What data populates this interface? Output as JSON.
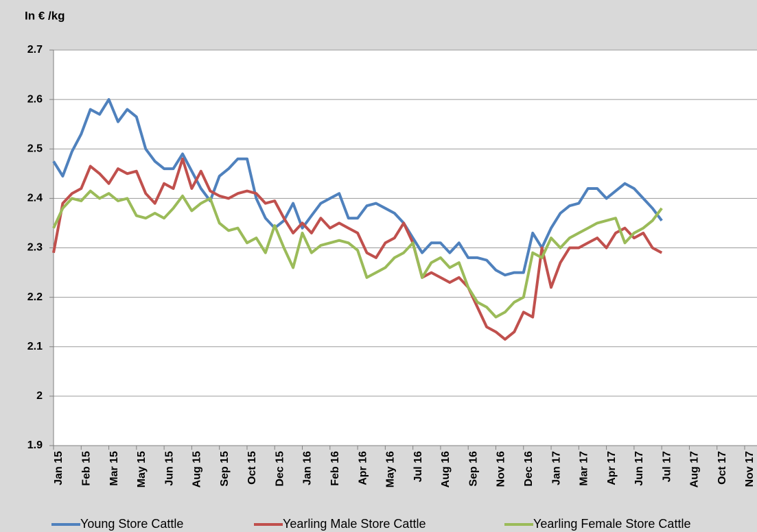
{
  "chart_data": {
    "type": "line",
    "y_axis_label": "In € /kg",
    "categories": [
      "Jan 15",
      null,
      null,
      "Feb 15",
      null,
      null,
      "Mar 15",
      null,
      null,
      "May 15",
      null,
      null,
      "Jun 15",
      null,
      null,
      "Aug 15",
      null,
      null,
      "Sep 15",
      null,
      null,
      "Oct 15",
      null,
      null,
      "Dec 15",
      null,
      null,
      "Jan 16",
      null,
      null,
      "Feb 16",
      null,
      null,
      "Apr 16",
      null,
      null,
      "May 16",
      null,
      null,
      "Jul 16",
      null,
      null,
      "Aug 16",
      null,
      null,
      "Sep 16",
      null,
      null,
      "Nov 16",
      null,
      null,
      "Dec 16",
      null,
      null,
      "Jan 17",
      null,
      null,
      "Mar 17",
      null,
      null,
      "Apr 17",
      null,
      null,
      "Jun 17",
      null,
      null,
      "Jul 17",
      null,
      null,
      "Aug 17",
      null,
      null,
      "Oct 17",
      null,
      null,
      "Nov 17"
    ],
    "series": [
      {
        "name": "Young Store Cattle",
        "color": "#4f81bd",
        "values": [
          2.475,
          2.445,
          2.495,
          2.53,
          2.58,
          2.57,
          2.6,
          2.555,
          2.58,
          2.565,
          2.5,
          2.475,
          2.46,
          2.46,
          2.49,
          2.455,
          2.42,
          2.395,
          2.445,
          2.46,
          2.48,
          2.48,
          2.4,
          2.36,
          2.34,
          2.355,
          2.39,
          2.34,
          2.365,
          2.39,
          2.4,
          2.41,
          2.36,
          2.36,
          2.385,
          2.39,
          2.38,
          2.37,
          2.35,
          2.32,
          2.29,
          2.31,
          2.31,
          2.29,
          2.31,
          2.28,
          2.28,
          2.275,
          2.255,
          2.245,
          2.25,
          2.25,
          2.33,
          2.3,
          2.34,
          2.37,
          2.385,
          2.39,
          2.42,
          2.42,
          2.4,
          2.415,
          2.43,
          2.42,
          2.4,
          2.38,
          2.355,
          null,
          null,
          null,
          null,
          null,
          null,
          null,
          null,
          null
        ]
      },
      {
        "name": "Yearling Male Store Cattle",
        "color": "#c0504d",
        "values": [
          2.29,
          2.39,
          2.41,
          2.42,
          2.465,
          2.45,
          2.43,
          2.46,
          2.45,
          2.455,
          2.41,
          2.39,
          2.43,
          2.42,
          2.48,
          2.42,
          2.455,
          2.415,
          2.405,
          2.4,
          2.41,
          2.415,
          2.41,
          2.39,
          2.395,
          2.36,
          2.33,
          2.35,
          2.33,
          2.36,
          2.34,
          2.35,
          2.34,
          2.33,
          2.29,
          2.28,
          2.31,
          2.32,
          2.35,
          2.31,
          2.24,
          2.25,
          2.24,
          2.23,
          2.24,
          2.22,
          2.18,
          2.14,
          2.13,
          2.115,
          2.13,
          2.17,
          2.16,
          2.3,
          2.22,
          2.27,
          2.3,
          2.3,
          2.31,
          2.32,
          2.3,
          2.33,
          2.34,
          2.32,
          2.33,
          2.3,
          2.29,
          null,
          null,
          null,
          null,
          null,
          null,
          null,
          null,
          null
        ]
      },
      {
        "name": "Yearling Female Store Cattle",
        "color": "#9bbb59",
        "values": [
          2.34,
          2.38,
          2.4,
          2.395,
          2.415,
          2.4,
          2.41,
          2.395,
          2.4,
          2.365,
          2.36,
          2.37,
          2.36,
          2.38,
          2.405,
          2.375,
          2.39,
          2.4,
          2.35,
          2.335,
          2.34,
          2.31,
          2.32,
          2.29,
          2.345,
          2.3,
          2.26,
          2.33,
          2.29,
          2.305,
          2.31,
          2.315,
          2.31,
          2.295,
          2.24,
          2.25,
          2.26,
          2.28,
          2.29,
          2.31,
          2.24,
          2.27,
          2.28,
          2.26,
          2.27,
          2.22,
          2.19,
          2.18,
          2.16,
          2.17,
          2.19,
          2.2,
          2.29,
          2.28,
          2.32,
          2.3,
          2.32,
          2.33,
          2.34,
          2.35,
          2.355,
          2.36,
          2.31,
          2.33,
          2.34,
          2.355,
          2.38,
          null,
          null,
          null,
          null,
          null,
          null,
          null,
          null,
          null
        ]
      }
    ],
    "ylim": [
      1.9,
      2.7
    ],
    "yticks": [
      1.9,
      2,
      2.1,
      2.2,
      2.3,
      2.4,
      2.5,
      2.6,
      2.7
    ],
    "grid": true
  }
}
